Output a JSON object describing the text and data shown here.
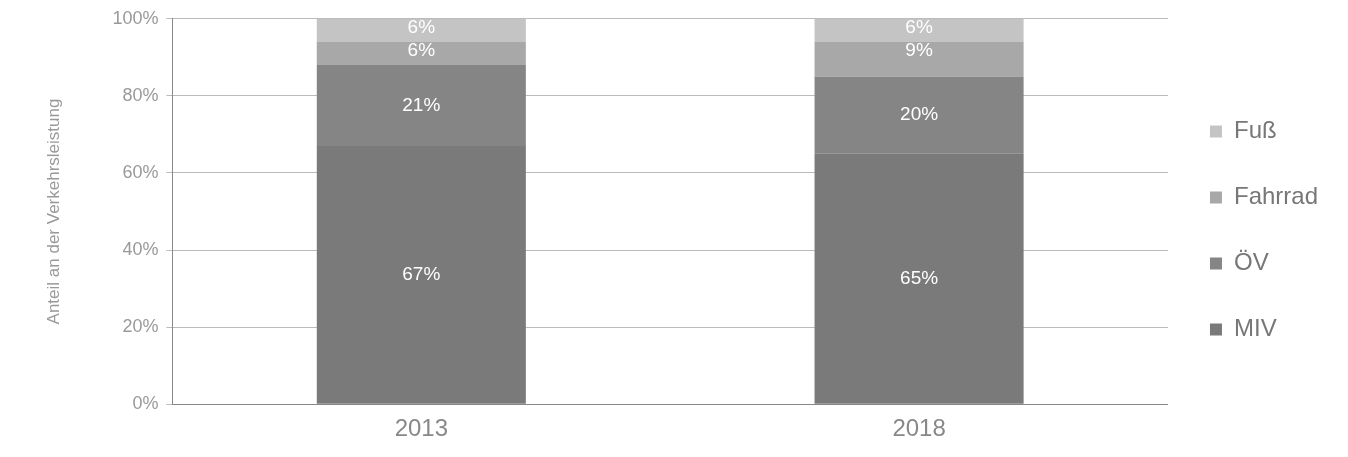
{
  "chart_data": {
    "type": "bar",
    "stacked": true,
    "ylabel": "Anteil an der Verkehrsleistung",
    "categories": [
      "2013",
      "2018"
    ],
    "series": [
      {
        "name": "MIV",
        "color": "#7a7a7a",
        "values": [
          67,
          65
        ],
        "value_labels": [
          "67%",
          "65%"
        ]
      },
      {
        "name": "ÖV",
        "color": "#858585",
        "values": [
          21,
          20
        ],
        "value_labels": [
          "21%",
          "20%"
        ]
      },
      {
        "name": "Fahrrad",
        "color": "#a8a8a8",
        "values": [
          6,
          9
        ],
        "value_labels": [
          "6%",
          "9%"
        ]
      },
      {
        "name": "Fuß",
        "color": "#c4c4c4",
        "values": [
          6,
          6
        ],
        "value_labels": [
          "6%",
          "6%"
        ]
      }
    ],
    "ylim": [
      0,
      100
    ],
    "yticks": [
      {
        "value": 0,
        "label": "0%"
      },
      {
        "value": 20,
        "label": "20%"
      },
      {
        "value": 40,
        "label": "40%"
      },
      {
        "value": 60,
        "label": "60%"
      },
      {
        "value": 80,
        "label": "80%"
      },
      {
        "value": 100,
        "label": "100%"
      }
    ],
    "grid": "y",
    "legend": "right"
  }
}
